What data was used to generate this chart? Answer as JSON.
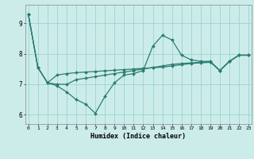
{
  "xlabel": "Humidex (Indice chaleur)",
  "bg_color": "#ccecea",
  "grid_color": "#99d4d0",
  "line_color": "#2d7d72",
  "x_values": [
    0,
    1,
    2,
    3,
    4,
    5,
    6,
    7,
    8,
    9,
    10,
    11,
    12,
    13,
    14,
    15,
    16,
    17,
    18,
    19,
    20,
    21,
    22,
    23
  ],
  "line1": [
    9.3,
    7.55,
    7.05,
    6.95,
    6.75,
    6.5,
    6.35,
    6.05,
    6.6,
    7.05,
    7.3,
    7.35,
    7.45,
    8.25,
    8.6,
    8.45,
    7.95,
    7.8,
    7.75,
    7.75,
    7.45,
    7.75,
    7.95,
    7.95
  ],
  "line2": [
    9.3,
    7.55,
    7.05,
    7.0,
    7.0,
    7.15,
    7.2,
    7.25,
    7.3,
    7.35,
    7.4,
    7.45,
    7.5,
    7.55,
    7.6,
    7.65,
    7.68,
    7.7,
    7.72,
    7.74,
    7.45,
    7.75,
    7.95,
    7.95
  ],
  "line3": [
    9.3,
    7.55,
    7.05,
    7.3,
    7.35,
    7.38,
    7.4,
    7.42,
    7.44,
    7.46,
    7.48,
    7.5,
    7.52,
    7.54,
    7.56,
    7.6,
    7.64,
    7.68,
    7.7,
    7.72,
    7.45,
    7.75,
    7.95,
    7.95
  ],
  "ylim": [
    5.7,
    9.6
  ],
  "xlim": [
    -0.3,
    23.3
  ],
  "yticks": [
    6,
    7,
    8,
    9
  ],
  "xticks": [
    0,
    1,
    2,
    3,
    4,
    5,
    6,
    7,
    8,
    9,
    10,
    11,
    12,
    13,
    14,
    15,
    16,
    17,
    18,
    19,
    20,
    21,
    22,
    23
  ]
}
